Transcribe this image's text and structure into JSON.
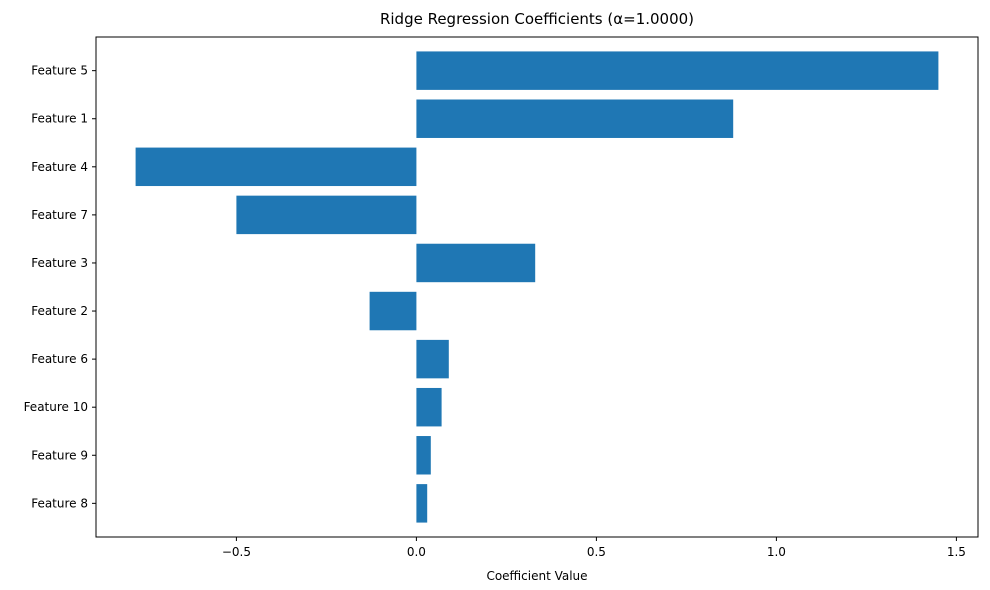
{
  "chart_data": {
    "type": "bar",
    "orientation": "horizontal",
    "title": "Ridge Regression Coefficients (α=1.0000)",
    "xlabel": "Coefficient Value",
    "ylabel": "",
    "categories": [
      "Feature 5",
      "Feature 1",
      "Feature 4",
      "Feature 7",
      "Feature 3",
      "Feature 2",
      "Feature 6",
      "Feature 10",
      "Feature 9",
      "Feature 8"
    ],
    "values": [
      1.45,
      0.88,
      -0.78,
      -0.5,
      0.33,
      -0.13,
      0.09,
      0.07,
      0.04,
      0.03
    ],
    "xlim": [
      -0.89,
      1.56
    ],
    "xticks": [
      -0.5,
      0.0,
      0.5,
      1.0,
      1.5
    ],
    "xtick_labels": [
      "−0.5",
      "0.0",
      "0.5",
      "1.0",
      "1.5"
    ],
    "bar_color": "#1f77b4",
    "grid": false,
    "legend": false
  }
}
